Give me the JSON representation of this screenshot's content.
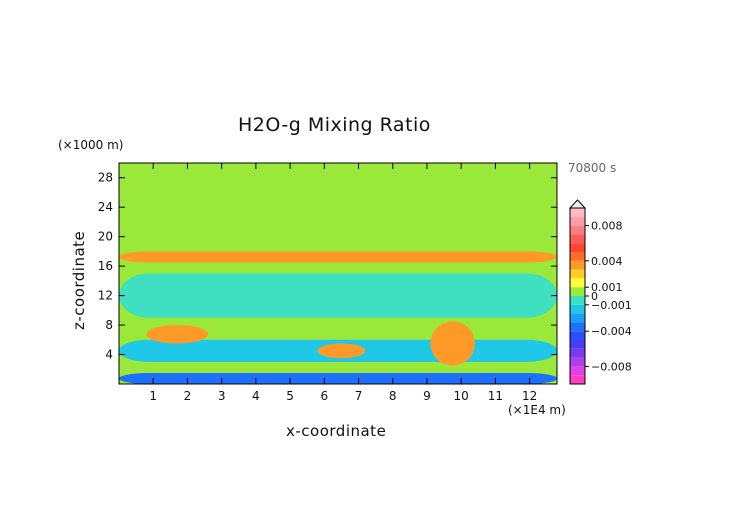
{
  "chart_data": {
    "type": "heatmap",
    "title": "H2O-g Mixing Ratio",
    "xlabel": "x-coordinate",
    "ylabel": "z-coordinate",
    "x_unit": "(×1E4 m)",
    "y_unit": "(×1000 m)",
    "time_label": "70800 s",
    "xlim": [
      0,
      12.8
    ],
    "ylim": [
      0,
      30
    ],
    "x_ticks": [
      1,
      2,
      3,
      4,
      5,
      6,
      7,
      8,
      9,
      10,
      11,
      12
    ],
    "y_ticks": [
      4,
      8,
      12,
      16,
      20,
      24,
      28
    ],
    "colorbar": {
      "levels": [
        -0.01,
        -0.009,
        -0.008,
        -0.007,
        -0.006,
        -0.005,
        -0.004,
        -0.003,
        -0.002,
        -0.001,
        0,
        0.001,
        0.002,
        0.003,
        0.004,
        0.005,
        0.006,
        0.007,
        0.008,
        0.009,
        0.01
      ],
      "colors": [
        "#ff3fc0",
        "#e040e8",
        "#b040e8",
        "#7a3cf0",
        "#4a3cf5",
        "#2a4ff8",
        "#1e70ff",
        "#1aa0f5",
        "#20c8e8",
        "#3ee0c0",
        "#9ae83a",
        "#ffff33",
        "#ffd028",
        "#ff9a28",
        "#ff6e28",
        "#ff4630",
        "#ff5a5a",
        "#ff7e80",
        "#ff9ea8",
        "#ffbcc4"
      ],
      "tick_labels": [
        {
          "value": 0.008,
          "label": "0.008"
        },
        {
          "value": 0.004,
          "label": "0.004"
        },
        {
          "value": 0.001,
          "label": "0.001"
        },
        {
          "value": 0,
          "label": "0"
        },
        {
          "value": -0.001,
          "label": "−0.001"
        },
        {
          "value": -0.004,
          "label": "−0.004"
        },
        {
          "value": -0.008,
          "label": "−0.008"
        }
      ],
      "extend": "max"
    },
    "legend_placement": "right",
    "grid": false,
    "description_of_field": [
      {
        "x_range": [
          0,
          12.8
        ],
        "z_range": [
          0,
          30
        ],
        "value": 0.0005
      },
      {
        "x_range": [
          0,
          12.8
        ],
        "z_range": [
          3,
          6
        ],
        "value": -0.0015
      },
      {
        "x_range": [
          0.8,
          2.6
        ],
        "z_range": [
          5.5,
          8
        ],
        "value": 0.0035
      },
      {
        "x_range": [
          5.8,
          7.2
        ],
        "z_range": [
          3.5,
          5.5
        ],
        "value": 0.003
      },
      {
        "x_range": [
          9.1,
          10.4
        ],
        "z_range": [
          2.5,
          8.5
        ],
        "value": 0.003
      },
      {
        "x_range": [
          0,
          12.8
        ],
        "z_range": [
          0,
          1.5
        ],
        "value": -0.004
      },
      {
        "x_range": [
          0,
          12.8
        ],
        "z_range": [
          16.5,
          18
        ],
        "value": 0.003
      },
      {
        "x_range": [
          0,
          12.8
        ],
        "z_range": [
          26,
          30
        ],
        "value": 0.0005
      },
      {
        "x_range": [
          0,
          12.8
        ],
        "z_range": [
          9,
          15
        ],
        "value": -0.0002
      }
    ]
  }
}
